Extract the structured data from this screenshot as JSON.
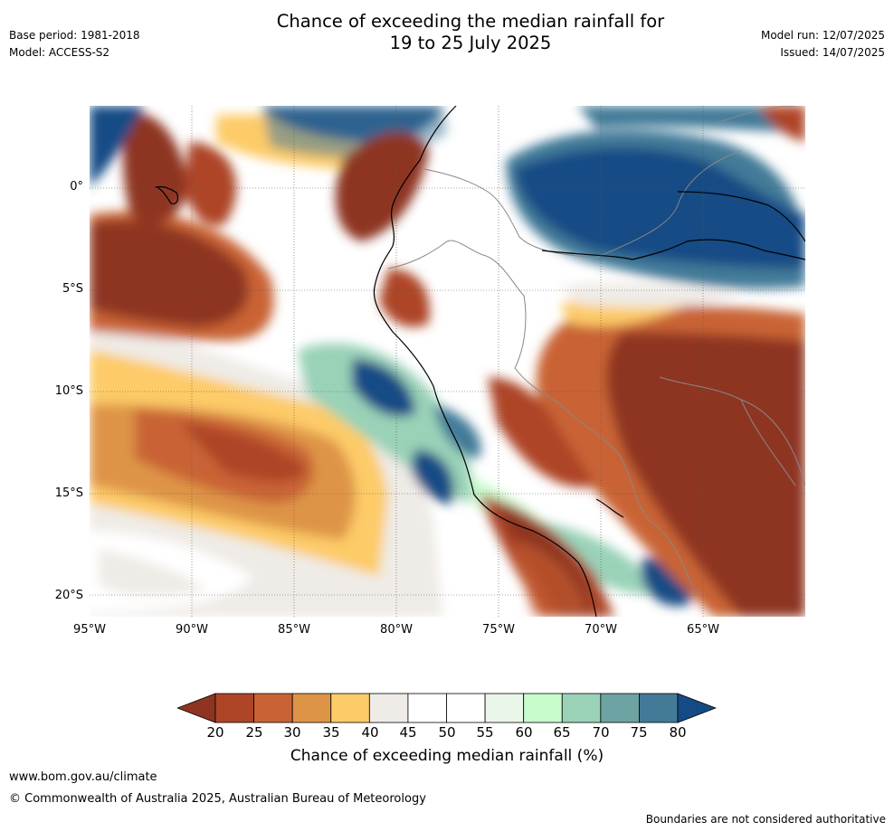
{
  "header": {
    "title_line1": "Chance of exceeding the median rainfall for",
    "title_line2": "19 to 25 July 2025",
    "base_period": "Base period: 1981-2018",
    "model": "Model: ACCESS-S2",
    "model_run": "Model run: 12/07/2025",
    "issued": "Issued: 14/07/2025"
  },
  "map": {
    "lat_ticks": [
      {
        "label": "0°",
        "value": 0
      },
      {
        "label": "5°S",
        "value": -5
      },
      {
        "label": "10°S",
        "value": -10
      },
      {
        "label": "15°S",
        "value": -15
      },
      {
        "label": "20°S",
        "value": -20
      }
    ],
    "lon_ticks": [
      {
        "label": "95°W",
        "value": -95
      },
      {
        "label": "90°W",
        "value": -90
      },
      {
        "label": "85°W",
        "value": -85
      },
      {
        "label": "80°W",
        "value": -80
      },
      {
        "label": "75°W",
        "value": -75
      },
      {
        "label": "70°W",
        "value": -70
      },
      {
        "label": "65°W",
        "value": -65
      }
    ]
  },
  "colorbar": {
    "title": "Chance of exceeding median rainfall (%)",
    "ticks": [
      "20",
      "25",
      "30",
      "35",
      "40",
      "45",
      "50",
      "55",
      "60",
      "65",
      "70",
      "75",
      "80"
    ],
    "colors": {
      "lt20": "#8e3420",
      "c20_25": "#ae4527",
      "c25_30": "#c96335",
      "c30_35": "#de9447",
      "c35_40": "#fdcb68",
      "c40_45": "#efebe6",
      "c45_50": "#ffffff",
      "c50_55": "#ffffff",
      "c55_60": "#eaf6ea",
      "c60_65": "#c8fccc",
      "c65_70": "#9ad2b8",
      "c70_75": "#6da3a3",
      "c75_80": "#437a98",
      "gt80": "#154b85"
    }
  },
  "footer": {
    "website": "www.bom.gov.au/climate",
    "copyright": "© Commonwealth of Australia 2025, Australian Bureau of Meteorology",
    "disclaimer": "Boundaries are not considered authoritative"
  }
}
